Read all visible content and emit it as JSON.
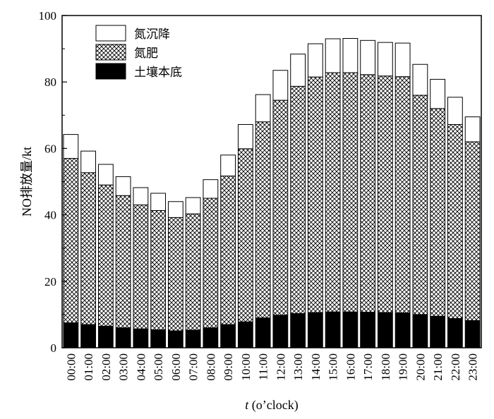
{
  "chart_data": {
    "type": "bar",
    "stacked": true,
    "categories": [
      "00:00",
      "01:00",
      "02:00",
      "03:00",
      "04:00",
      "05:00",
      "06:00",
      "07:00",
      "08:00",
      "09:00",
      "10:00",
      "11:00",
      "12:00",
      "13:00",
      "14:00",
      "15:00",
      "16:00",
      "17:00",
      "18:00",
      "19:00",
      "20:00",
      "21:00",
      "22:00",
      "23:00"
    ],
    "series": [
      {
        "name": "土壤本底",
        "pattern": "solid-black",
        "values": [
          7.5,
          7.0,
          6.5,
          6.0,
          5.7,
          5.4,
          5.1,
          5.3,
          6.0,
          7.0,
          7.8,
          9.0,
          9.8,
          10.3,
          10.6,
          10.8,
          10.8,
          10.7,
          10.6,
          10.5,
          10.0,
          9.5,
          8.8,
          8.2
        ]
      },
      {
        "name": "氮肥",
        "pattern": "crosshatch",
        "values": [
          49.5,
          45.7,
          42.5,
          39.8,
          37.3,
          35.9,
          34.1,
          35.0,
          39.0,
          44.7,
          52.1,
          59.0,
          64.7,
          68.4,
          70.9,
          72.0,
          72.0,
          71.5,
          71.2,
          71.1,
          66.0,
          62.5,
          58.4,
          53.8
        ]
      },
      {
        "name": "氮沉降",
        "pattern": "white",
        "values": [
          7.2,
          6.5,
          6.2,
          5.7,
          5.2,
          5.2,
          4.8,
          4.9,
          5.6,
          6.3,
          7.3,
          8.2,
          9.0,
          9.7,
          10.0,
          10.2,
          10.3,
          10.3,
          10.1,
          10.1,
          9.3,
          8.8,
          8.2,
          7.5
        ]
      }
    ],
    "legend_order": [
      "氮沉降",
      "氮肥",
      "土壤本底"
    ],
    "legend_position": "top-left",
    "ylim": [
      0,
      100
    ],
    "yticks": [
      0,
      20,
      40,
      60,
      80,
      100
    ],
    "ylabel": "NO排放量/kt",
    "xlabel_italic": "t",
    "xlabel_rest": " (o’clock)",
    "grid": false
  }
}
